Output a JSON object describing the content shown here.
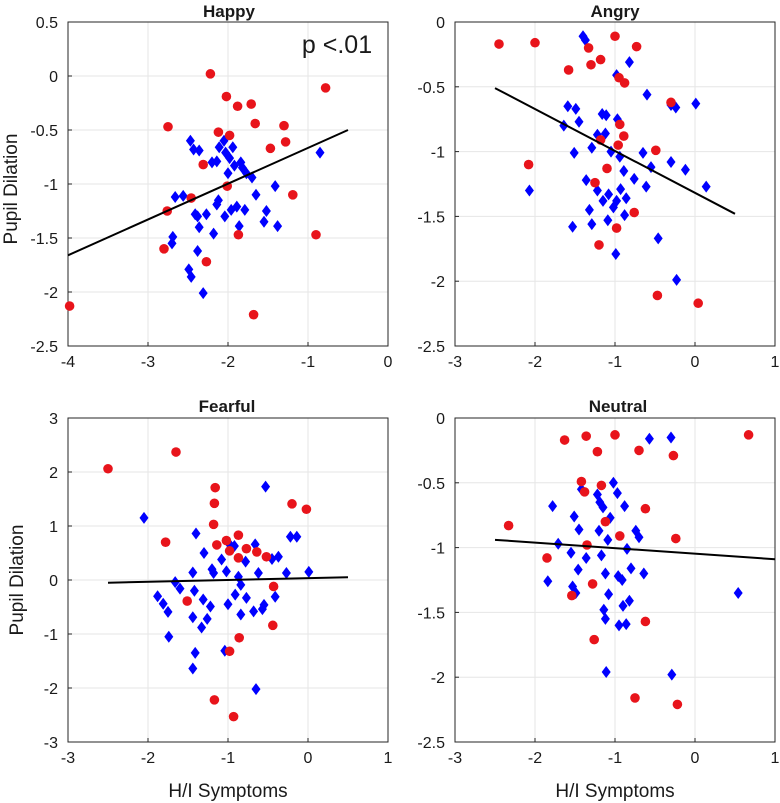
{
  "figure": {
    "x_axis_label": "H/I Symptoms",
    "y_axis_label": "Pupil Dilation"
  },
  "colors": {
    "diamond": "#0000ff",
    "circle": "#e8141b",
    "fit_line": "#000000",
    "grid": "#e6e6e6",
    "axis": "#262626"
  },
  "chart_data": [
    {
      "type": "scatter",
      "title": "Happy",
      "annotation": "p <.01",
      "xlabel": "",
      "ylabel": "Pupil Dilation",
      "xlim": [
        -4,
        0
      ],
      "ylim": [
        -2.5,
        0.5
      ],
      "xticks": [
        -4,
        -3,
        -2,
        -1,
        0
      ],
      "yticks": [
        -2.5,
        -2,
        -1.5,
        -1,
        -0.5,
        0,
        0.5
      ],
      "fit_line": {
        "x": [
          -4,
          -0.5
        ],
        "y": [
          -1.66,
          -0.5
        ]
      },
      "circles": [
        [
          -2.22,
          0.02
        ],
        [
          -2.02,
          -0.19
        ],
        [
          -1.88,
          -0.28
        ],
        [
          -1.71,
          -0.26
        ],
        [
          -0.78,
          -0.11
        ],
        [
          -2.75,
          -0.47
        ],
        [
          -2.12,
          -0.52
        ],
        [
          -1.98,
          -0.55
        ],
        [
          -1.66,
          -0.44
        ],
        [
          -1.47,
          -0.67
        ],
        [
          -1.3,
          -0.46
        ],
        [
          -1.28,
          -0.61
        ],
        [
          -2.31,
          -0.82
        ],
        [
          -2.46,
          -1.13
        ],
        [
          -2.01,
          -1.02
        ],
        [
          -1.19,
          -1.1
        ],
        [
          -2.76,
          -1.25
        ],
        [
          -1.87,
          -1.47
        ],
        [
          -2.8,
          -1.6
        ],
        [
          -2.27,
          -1.72
        ],
        [
          -0.9,
          -1.47
        ],
        [
          -1.68,
          -2.21
        ],
        [
          -3.98,
          -2.13
        ]
      ],
      "diamonds": [
        [
          -2.47,
          -0.6
        ],
        [
          -2.43,
          -0.68
        ],
        [
          -2.36,
          -0.69
        ],
        [
          -2.2,
          -0.8
        ],
        [
          -2.11,
          -0.66
        ],
        [
          -2.05,
          -0.6
        ],
        [
          -2.03,
          -0.71
        ],
        [
          -1.98,
          -0.76
        ],
        [
          -1.94,
          -0.66
        ],
        [
          -1.92,
          -0.83
        ],
        [
          -2.14,
          -0.79
        ],
        [
          -2.0,
          -0.9
        ],
        [
          -1.84,
          -0.8
        ],
        [
          -1.82,
          -0.85
        ],
        [
          -1.77,
          -0.9
        ],
        [
          -1.7,
          -0.94
        ],
        [
          -2.66,
          -1.12
        ],
        [
          -2.56,
          -1.11
        ],
        [
          -2.38,
          -1.3
        ],
        [
          -2.27,
          -1.28
        ],
        [
          -2.14,
          -1.19
        ],
        [
          -2.04,
          -1.3
        ],
        [
          -1.96,
          -1.24
        ],
        [
          -1.89,
          -1.21
        ],
        [
          -1.79,
          -1.24
        ],
        [
          -1.65,
          -1.1
        ],
        [
          -1.52,
          -1.25
        ],
        [
          -1.55,
          -1.35
        ],
        [
          -1.86,
          -1.39
        ],
        [
          -2.41,
          -1.28
        ],
        [
          -2.36,
          -1.4
        ],
        [
          -2.18,
          -1.46
        ],
        [
          -2.38,
          -1.62
        ],
        [
          -2.49,
          -1.79
        ],
        [
          -2.46,
          -1.86
        ],
        [
          -2.31,
          -2.01
        ],
        [
          -2.7,
          -1.55
        ],
        [
          -2.69,
          -1.49
        ],
        [
          -1.41,
          -1.02
        ],
        [
          -1.38,
          -1.39
        ],
        [
          -0.85,
          -0.71
        ],
        [
          -2.12,
          -1.15
        ]
      ]
    },
    {
      "type": "scatter",
      "title": "Angry",
      "annotation": "",
      "xlabel": "",
      "ylabel": "",
      "xlim": [
        -3,
        1
      ],
      "ylim": [
        -2.5,
        0
      ],
      "xticks": [
        -3,
        -2,
        -1,
        0,
        1
      ],
      "yticks": [
        -2.5,
        -2,
        -1.5,
        -1,
        -0.5,
        0
      ],
      "fit_line": {
        "x": [
          -2.5,
          0.5
        ],
        "y": [
          -0.51,
          -1.48
        ]
      },
      "circles": [
        [
          -2.45,
          -0.17
        ],
        [
          -2.0,
          -0.16
        ],
        [
          -1.33,
          -0.2
        ],
        [
          -1.0,
          -0.11
        ],
        [
          -0.73,
          -0.19
        ],
        [
          -1.58,
          -0.37
        ],
        [
          -1.3,
          -0.33
        ],
        [
          -0.95,
          -0.43
        ],
        [
          -0.88,
          -0.47
        ],
        [
          -1.18,
          -0.29
        ],
        [
          -0.3,
          -0.62
        ],
        [
          -0.94,
          -0.79
        ],
        [
          -1.18,
          -0.91
        ],
        [
          -0.89,
          -0.88
        ],
        [
          -0.49,
          -0.99
        ],
        [
          -0.96,
          -0.95
        ],
        [
          -2.08,
          -1.1
        ],
        [
          -1.25,
          -1.24
        ],
        [
          -1.1,
          -1.13
        ],
        [
          -0.76,
          -1.47
        ],
        [
          -0.98,
          -1.59
        ],
        [
          -1.2,
          -1.72
        ],
        [
          -0.47,
          -2.11
        ],
        [
          0.04,
          -2.17
        ]
      ],
      "diamonds": [
        [
          -1.4,
          -0.11
        ],
        [
          -1.37,
          -0.14
        ],
        [
          -0.82,
          -0.31
        ],
        [
          -0.98,
          -0.41
        ],
        [
          -0.6,
          -0.56
        ],
        [
          -0.3,
          -0.64
        ],
        [
          -1.59,
          -0.65
        ],
        [
          -1.49,
          -0.67
        ],
        [
          -1.16,
          -0.71
        ],
        [
          -1.11,
          -0.72
        ],
        [
          -0.97,
          -0.75
        ],
        [
          -1.64,
          -0.8
        ],
        [
          -1.45,
          -0.77
        ],
        [
          -1.22,
          -0.87
        ],
        [
          -1.12,
          -0.86
        ],
        [
          -0.24,
          -0.66
        ],
        [
          -1.29,
          -0.97
        ],
        [
          -1.05,
          -1.0
        ],
        [
          -0.94,
          -1.04
        ],
        [
          -0.65,
          -1.01
        ],
        [
          -1.51,
          -1.01
        ],
        [
          -0.55,
          -1.12
        ],
        [
          -0.3,
          -1.08
        ],
        [
          -0.89,
          -1.15
        ],
        [
          -1.36,
          -1.22
        ],
        [
          -1.22,
          -1.3
        ],
        [
          -1.15,
          -1.38
        ],
        [
          -1.32,
          -1.45
        ],
        [
          -1.08,
          -1.33
        ],
        [
          -0.98,
          -1.38
        ],
        [
          -0.93,
          -1.29
        ],
        [
          -0.86,
          -1.36
        ],
        [
          -0.76,
          -1.21
        ],
        [
          -0.61,
          -1.27
        ],
        [
          -1.02,
          -1.43
        ],
        [
          -0.88,
          -1.49
        ],
        [
          -1.09,
          -1.53
        ],
        [
          -1.53,
          -1.58
        ],
        [
          -1.29,
          -1.56
        ],
        [
          -0.46,
          -1.67
        ],
        [
          -0.99,
          -1.79
        ],
        [
          -2.07,
          -1.3
        ],
        [
          0.14,
          -1.27
        ],
        [
          -0.23,
          -1.99
        ],
        [
          -0.12,
          -1.14
        ],
        [
          0.01,
          -0.63
        ]
      ]
    },
    {
      "type": "scatter",
      "title": "Fearful",
      "annotation": "",
      "xlabel": "H/I Symptoms",
      "ylabel": "Pupil Dilation",
      "xlim": [
        -3,
        1
      ],
      "ylim": [
        -3,
        3
      ],
      "xticks": [
        -3,
        -2,
        -1,
        0,
        1
      ],
      "yticks": [
        -3,
        -2,
        -1,
        0,
        1,
        2,
        3
      ],
      "fit_line": {
        "x": [
          -2.5,
          0.5
        ],
        "y": [
          -0.05,
          0.05
        ]
      },
      "circles": [
        [
          -2.5,
          2.06
        ],
        [
          -1.65,
          2.37
        ],
        [
          -1.16,
          1.71
        ],
        [
          -1.17,
          1.42
        ],
        [
          -0.2,
          1.41
        ],
        [
          -0.02,
          1.31
        ],
        [
          -1.18,
          1.03
        ],
        [
          -0.87,
          0.83
        ],
        [
          -1.02,
          0.73
        ],
        [
          -0.64,
          0.52
        ],
        [
          -0.87,
          0.41
        ],
        [
          -1.14,
          0.65
        ],
        [
          -1.78,
          0.7
        ],
        [
          -0.52,
          0.43
        ],
        [
          -0.77,
          0.58
        ],
        [
          -0.98,
          0.54
        ],
        [
          -1.51,
          -0.39
        ],
        [
          -0.43,
          -0.12
        ],
        [
          -0.44,
          -0.84
        ],
        [
          -0.86,
          -1.07
        ],
        [
          -0.98,
          -1.32
        ],
        [
          -1.17,
          -2.22
        ],
        [
          -0.93,
          -2.53
        ]
      ],
      "diamonds": [
        [
          -2.05,
          1.15
        ],
        [
          -1.4,
          0.86
        ],
        [
          -0.53,
          1.73
        ],
        [
          -0.92,
          0.63
        ],
        [
          -0.98,
          0.66
        ],
        [
          -1.3,
          0.5
        ],
        [
          -1.08,
          0.38
        ],
        [
          -1.2,
          0.2
        ],
        [
          -0.78,
          0.34
        ],
        [
          -0.66,
          0.66
        ],
        [
          -0.22,
          0.8
        ],
        [
          -0.14,
          0.8
        ],
        [
          -1.44,
          0.14
        ],
        [
          -1.18,
          0.13
        ],
        [
          -1.02,
          0.16
        ],
        [
          -0.87,
          0.06
        ],
        [
          -0.62,
          0.13
        ],
        [
          -0.45,
          0.39
        ],
        [
          -0.37,
          0.43
        ],
        [
          -0.27,
          0.13
        ],
        [
          -1.66,
          -0.04
        ],
        [
          -1.6,
          -0.16
        ],
        [
          -1.88,
          -0.3
        ],
        [
          -1.81,
          -0.44
        ],
        [
          -1.42,
          -0.2
        ],
        [
          -1.31,
          -0.36
        ],
        [
          -1.22,
          -0.49
        ],
        [
          -0.91,
          -0.27
        ],
        [
          -0.84,
          -0.09
        ],
        [
          -0.77,
          -0.33
        ],
        [
          -0.68,
          -0.58
        ],
        [
          -0.57,
          -0.54
        ],
        [
          -0.55,
          -0.46
        ],
        [
          -0.41,
          -0.31
        ],
        [
          -1.75,
          -0.59
        ],
        [
          -1.44,
          -0.69
        ],
        [
          -1.26,
          -0.72
        ],
        [
          -1.33,
          -0.88
        ],
        [
          -1.0,
          -0.45
        ],
        [
          -0.84,
          -0.64
        ],
        [
          -1.74,
          -1.05
        ],
        [
          -1.41,
          -1.35
        ],
        [
          -1.44,
          -1.64
        ],
        [
          -1.04,
          -1.31
        ],
        [
          -0.65,
          -2.02
        ],
        [
          0.01,
          0.15
        ]
      ]
    },
    {
      "type": "scatter",
      "title": "Neutral",
      "annotation": "",
      "xlabel": "H/I Symptoms",
      "ylabel": "",
      "xlim": [
        -3,
        1
      ],
      "ylim": [
        -2.5,
        0
      ],
      "xticks": [
        -3,
        -2,
        -1,
        0,
        1
      ],
      "yticks": [
        -2.5,
        -2,
        -1.5,
        -1,
        -0.5,
        0
      ],
      "fit_line": {
        "x": [
          -2.5,
          1
        ],
        "y": [
          -0.94,
          -1.09
        ]
      },
      "circles": [
        [
          -1.63,
          -0.17
        ],
        [
          -1.36,
          -0.14
        ],
        [
          -1.0,
          -0.13
        ],
        [
          -0.7,
          -0.25
        ],
        [
          -0.27,
          -0.29
        ],
        [
          0.67,
          -0.13
        ],
        [
          -1.22,
          -0.26
        ],
        [
          -1.42,
          -0.49
        ],
        [
          -1.38,
          -0.57
        ],
        [
          -1.17,
          -0.52
        ],
        [
          -0.62,
          -0.7
        ],
        [
          -0.94,
          -0.91
        ],
        [
          -2.33,
          -0.83
        ],
        [
          -1.85,
          -1.08
        ],
        [
          -1.35,
          -0.98
        ],
        [
          -0.24,
          -0.93
        ],
        [
          -1.28,
          -1.28
        ],
        [
          -1.54,
          -1.37
        ],
        [
          -0.62,
          -1.57
        ],
        [
          -1.26,
          -1.71
        ],
        [
          -0.75,
          -2.16
        ],
        [
          -0.22,
          -2.21
        ],
        [
          -1.12,
          -0.8
        ]
      ],
      "diamonds": [
        [
          -0.57,
          -0.16
        ],
        [
          -0.3,
          -0.15
        ],
        [
          -1.42,
          -0.55
        ],
        [
          -1.02,
          -0.5
        ],
        [
          -1.78,
          -0.68
        ],
        [
          -1.51,
          -0.76
        ],
        [
          -1.45,
          -0.86
        ],
        [
          -1.22,
          -0.59
        ],
        [
          -1.19,
          -0.65
        ],
        [
          -1.15,
          -0.69
        ],
        [
          -1.06,
          -0.77
        ],
        [
          -0.97,
          -0.58
        ],
        [
          -0.88,
          -0.68
        ],
        [
          -0.74,
          -0.87
        ],
        [
          -1.71,
          -0.97
        ],
        [
          -1.55,
          -1.04
        ],
        [
          -1.36,
          -1.08
        ],
        [
          -1.2,
          -0.87
        ],
        [
          -1.09,
          -0.94
        ],
        [
          -0.85,
          -1.01
        ],
        [
          -0.7,
          -0.92
        ],
        [
          -1.84,
          -1.26
        ],
        [
          -1.46,
          -1.17
        ],
        [
          -1.17,
          -1.06
        ],
        [
          -1.12,
          -1.2
        ],
        [
          -0.96,
          -1.22
        ],
        [
          -0.91,
          -1.25
        ],
        [
          -0.8,
          -1.16
        ],
        [
          -1.53,
          -1.3
        ],
        [
          -1.08,
          -1.36
        ],
        [
          -0.9,
          -1.45
        ],
        [
          -1.49,
          -1.35
        ],
        [
          -1.12,
          -1.55
        ],
        [
          -0.95,
          -1.6
        ],
        [
          -0.82,
          -1.41
        ],
        [
          -0.64,
          -1.2
        ],
        [
          -1.14,
          -1.48
        ],
        [
          -0.86,
          -1.59
        ],
        [
          -1.11,
          -1.96
        ],
        [
          -0.29,
          -1.98
        ],
        [
          0.54,
          -1.35
        ]
      ]
    }
  ]
}
